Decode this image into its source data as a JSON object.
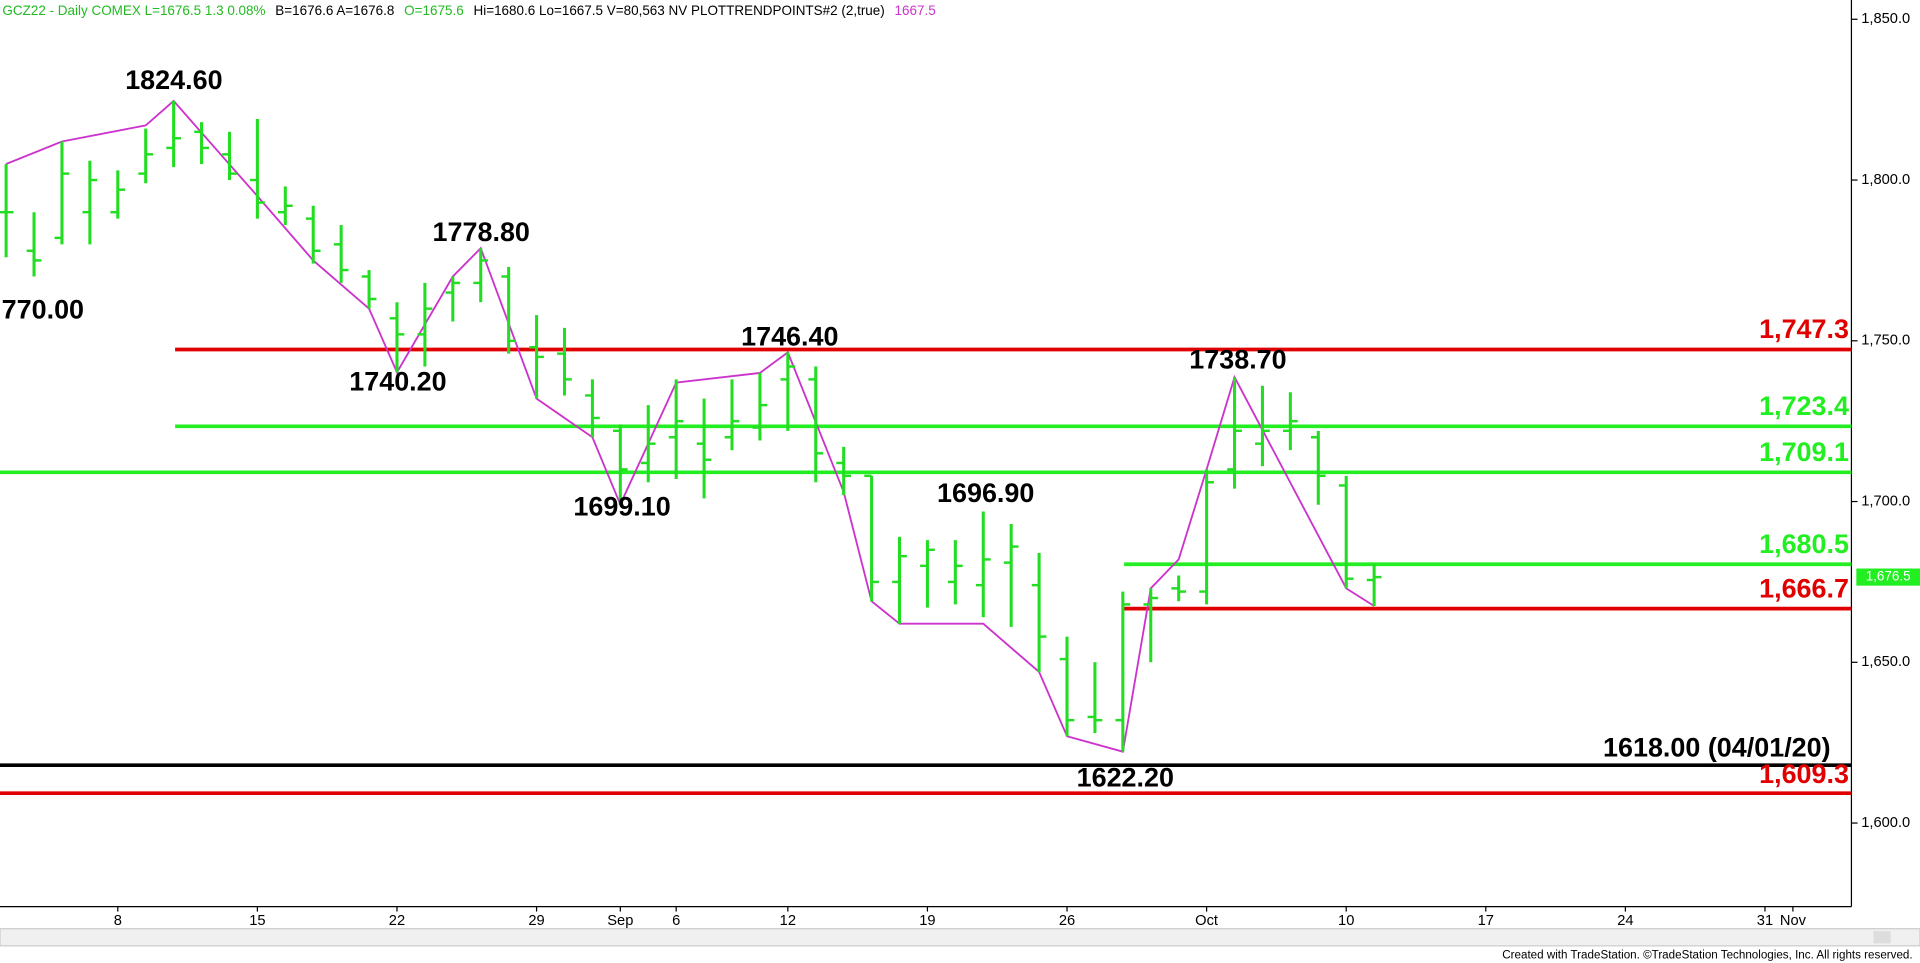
{
  "header": {
    "segments": [
      {
        "text": "GCZ22 - Daily  COMEX  L=1676.5  1.3  0.08%",
        "color": "#22bb22"
      },
      {
        "text": "B=1676.6  A=1676.8",
        "color": "#000000"
      },
      {
        "text": "O=1675.6",
        "color": "#22bb22"
      },
      {
        "text": "Hi=1680.6  Lo=1667.5  V=80,563  NV  PLOTTRENDPOINTS#2 (2,true)",
        "color": "#000000"
      },
      {
        "text": "1667.5",
        "color": "#cc33cc"
      }
    ]
  },
  "chart_data": {
    "type": "ohlc",
    "color": "#22dd22",
    "categories": [
      null,
      null,
      null,
      null,
      "8",
      null,
      null,
      null,
      null,
      "15",
      null,
      null,
      null,
      null,
      "22",
      null,
      null,
      null,
      null,
      "29",
      null,
      null,
      "Sep",
      null,
      "6",
      null,
      null,
      null,
      "12",
      null,
      null,
      null,
      null,
      "19",
      null,
      null,
      null,
      null,
      "26",
      null,
      null,
      null,
      null,
      "Oct",
      null,
      null,
      null,
      null,
      "10",
      null,
      null,
      null,
      null,
      "17",
      null,
      null,
      null,
      null,
      "24",
      null,
      null,
      null,
      null,
      "31",
      "Nov",
      null
    ],
    "open": [
      1790,
      1778,
      1782,
      1790,
      1790,
      1802,
      1810,
      1815,
      1808,
      1800,
      1790,
      1788,
      1780,
      1770,
      1757,
      1752,
      1765,
      1768,
      1770,
      1748,
      1746,
      1733,
      1722,
      1712,
      1720,
      1718,
      1720,
      1723,
      1738,
      1738,
      1712,
      1708,
      1675,
      1680,
      1675,
      1674,
      1681,
      1674,
      1651,
      1633,
      1632,
      1668,
      1673,
      1672,
      1710,
      1718,
      1722,
      1720,
      1705,
      1675.6,
      null,
      null,
      null,
      null,
      null,
      null,
      null,
      null,
      null,
      null,
      null,
      null,
      null,
      null,
      null,
      null
    ],
    "high": [
      1805,
      1790,
      1812,
      1806,
      1803,
      1816,
      1824.6,
      1818,
      1815,
      1819,
      1798,
      1792,
      1786,
      1772,
      1762,
      1768,
      1770,
      1778.8,
      1773,
      1758,
      1754,
      1738,
      1724,
      1730,
      1738,
      1732,
      1738,
      1740,
      1746.4,
      1742,
      1717,
      1708,
      1689,
      1688,
      1688,
      1696.9,
      1693,
      1684,
      1658,
      1650,
      1672,
      1673,
      1677,
      1710,
      1738.7,
      1736,
      1734,
      1722,
      1708,
      1680.6,
      null,
      null,
      null,
      null,
      null,
      null,
      null,
      null,
      null,
      null,
      null,
      null,
      null,
      null,
      null,
      null
    ],
    "low": [
      1776,
      1770,
      1780,
      1780,
      1788,
      1799,
      1804,
      1805,
      1800,
      1788,
      1786,
      1774,
      1768,
      1760,
      1740.2,
      1742,
      1756,
      1762,
      1746,
      1732,
      1733,
      1720,
      1699.1,
      1706,
      1707,
      1701,
      1716,
      1719,
      1722,
      1706,
      1702,
      1669,
      1662,
      1667,
      1668,
      1664,
      1661,
      1647,
      1627,
      1628,
      1622.2,
      1650,
      1669,
      1668,
      1704,
      1711,
      1716,
      1699,
      1673,
      1667.5,
      null,
      null,
      null,
      null,
      null,
      null,
      null,
      null,
      null,
      null,
      null,
      null,
      null,
      null,
      null,
      null
    ],
    "close": [
      1790,
      1775,
      1802,
      1800,
      1797,
      1808,
      1813,
      1810,
      1802,
      1793,
      1792,
      1778,
      1772,
      1763,
      1752,
      1760,
      1768,
      1775,
      1750,
      1745,
      1738,
      1726,
      1710,
      1718,
      1725,
      1713,
      1725,
      1730,
      1742,
      1715,
      1708,
      1675,
      1683,
      1685,
      1680,
      1682,
      1686,
      1658,
      1632,
      1632,
      1668,
      1670,
      1672,
      1706,
      1722,
      1722,
      1725,
      1708,
      1676,
      1676.5,
      null,
      null,
      null,
      null,
      null,
      null,
      null,
      null,
      null,
      null,
      null,
      null,
      null,
      null,
      null,
      null
    ],
    "trend": {
      "color": "#cc33cc",
      "x": [
        0,
        2,
        5,
        6,
        9,
        11,
        13,
        14,
        16,
        17,
        19,
        21,
        22,
        24,
        27,
        28,
        30,
        31,
        32,
        35,
        37,
        38,
        40,
        41,
        42,
        43,
        44,
        48,
        49
      ],
      "values": [
        1805,
        1812,
        1817,
        1824.6,
        1795,
        1775,
        1760,
        1740.2,
        1770,
        1778.8,
        1732,
        1720,
        1699.1,
        1737,
        1740,
        1746.4,
        1703,
        1669,
        1662,
        1662,
        1647,
        1627,
        1622.2,
        1673,
        1682,
        1710,
        1738.7,
        1673,
        1667.5
      ]
    },
    "annotations": [
      "770.00",
      "1824.60",
      "1778.80",
      "1740.20",
      "1746.40",
      "1699.10",
      "1696.90",
      "1738.70",
      "1622.20"
    ],
    "levels": [
      {
        "value": 1747.3,
        "label": "1,747.3",
        "color": "#e00000"
      },
      {
        "value": 1723.4,
        "label": "1,723.4",
        "color": "#22ee22"
      },
      {
        "value": 1709.1,
        "label": "1,709.1",
        "color": "#22ee22"
      },
      {
        "value": 1680.5,
        "label": "1,680.5",
        "color": "#22ee22"
      },
      {
        "value": 1666.7,
        "label": "1,666.7",
        "color": "#e00000"
      },
      {
        "value": 1618.0,
        "label": "1618.00 (04/01/20)",
        "color": "#000000"
      },
      {
        "value": 1609.3,
        "label": "1,609.3",
        "color": "#e00000"
      }
    ],
    "last_price": {
      "value": 1676.5,
      "label": "1,676.5",
      "color": "#22ee22"
    },
    "ylim": [
      1574,
      1856
    ],
    "yticks": [
      {
        "value": 1600,
        "label": "1,600.0"
      },
      {
        "value": 1650,
        "label": "1,650.0"
      },
      {
        "value": 1700,
        "label": "1,700.0"
      },
      {
        "value": 1750,
        "label": "1,750.0"
      },
      {
        "value": 1800,
        "label": "1,800.0"
      },
      {
        "value": 1850,
        "label": "1,850.0"
      }
    ]
  },
  "footer": "Created with TradeStation. ©TradeStation Technologies, Inc. All rights reserved."
}
